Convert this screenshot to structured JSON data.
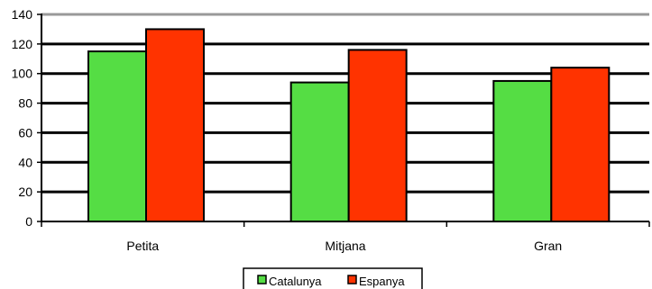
{
  "chart_data": {
    "type": "bar",
    "categories": [
      "Petita",
      "Mitjana",
      "Gran"
    ],
    "series": [
      {
        "name": "Catalunya",
        "values": [
          115,
          94,
          95
        ],
        "color": "#55dd44"
      },
      {
        "name": "Espanya",
        "values": [
          130,
          116,
          104
        ],
        "color": "#ff3300"
      }
    ],
    "ylim": [
      0,
      140
    ],
    "yticks": [
      0,
      20,
      40,
      60,
      80,
      100,
      120,
      140
    ],
    "grid": true,
    "legend": "bottom-center",
    "gridline_color": "#000000",
    "frame_top_color": "#999999"
  }
}
